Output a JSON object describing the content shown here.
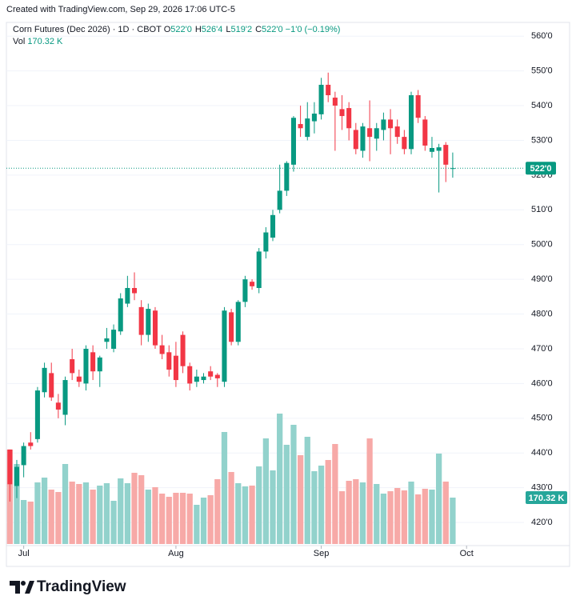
{
  "watermark": "Created with TradingView.com, Sep 29, 2026 17:06 UTC-5",
  "footer": {
    "brand": "TradingView"
  },
  "chart_data": {
    "type": "candlestick",
    "title": "Corn Futures (Dec 2026) · 1D · CBOT",
    "legend": {
      "ohlc": [
        {
          "label": "O",
          "value": "522'0"
        },
        {
          "label": "H",
          "value": "526'4"
        },
        {
          "label": "L",
          "value": "519'2"
        },
        {
          "label": "C",
          "value": "522'0"
        }
      ],
      "change": "−1'0 (−0.19%)",
      "volume_label": "Vol",
      "volume_value": "170.32 K"
    },
    "open": [
      441,
      430.5,
      436.5,
      443,
      444,
      457.5,
      463,
      454.5,
      451,
      467,
      462,
      460,
      469,
      463.5,
      472,
      470,
      475,
      483,
      487.5,
      482,
      474,
      481,
      471,
      469,
      468,
      474,
      465,
      460.5,
      461,
      463.5,
      462.5,
      460.5,
      480.5,
      472,
      483.5,
      489.3,
      487.5,
      498,
      502,
      510,
      515.5,
      523,
      534.7,
      531,
      535.5,
      537.5,
      546,
      542.3,
      539,
      539.3,
      533,
      527,
      533.5,
      530.5,
      533,
      536,
      534,
      531,
      527.5,
      543,
      536,
      526.7,
      527,
      528.7,
      522
    ],
    "high": [
      441,
      438,
      443,
      446,
      459,
      466,
      466,
      457,
      462,
      470,
      464,
      471,
      471,
      468,
      476,
      477,
      486,
      491,
      492,
      484,
      483,
      482,
      474,
      471,
      472,
      475,
      466,
      464,
      463,
      465,
      463,
      482,
      481.5,
      484,
      491,
      490,
      499,
      505,
      510,
      523,
      524,
      537,
      540,
      541,
      541,
      548,
      549.5,
      544,
      543,
      541,
      535,
      535,
      541.5,
      535,
      538,
      539,
      536,
      533,
      544,
      544.5,
      537,
      531,
      529,
      529.5,
      526.5
    ],
    "low": [
      426,
      427,
      433,
      441,
      443,
      456,
      455,
      450,
      448,
      461,
      459,
      458,
      461,
      459,
      470,
      469,
      474,
      482,
      484,
      471,
      472,
      470,
      467,
      462,
      459,
      463,
      458,
      459,
      460,
      461,
      459,
      459,
      471,
      471,
      482,
      487,
      486,
      496,
      501,
      509,
      514,
      521,
      531,
      530,
      532,
      536,
      541,
      527,
      533,
      530,
      526,
      525,
      524,
      527,
      530,
      526,
      529,
      526,
      526,
      535,
      527,
      525,
      515,
      518,
      519.25
    ],
    "close": [
      431,
      436,
      442,
      442,
      458,
      464.5,
      456,
      452.5,
      461,
      463,
      460.5,
      470,
      463.5,
      467.5,
      473,
      475.5,
      484.5,
      487.5,
      486,
      474,
      481.5,
      471,
      468.5,
      464,
      461,
      465,
      460,
      462,
      462,
      462,
      461.5,
      481,
      472,
      483.5,
      490,
      488,
      498,
      503.5,
      508.5,
      515.5,
      523.5,
      536.5,
      533.5,
      536.3,
      537.7,
      546,
      543,
      540,
      537,
      533.5,
      527.5,
      534,
      531,
      533.5,
      536,
      533.5,
      531,
      527.5,
      543,
      536.5,
      528.5,
      527.8,
      528,
      523,
      522
    ],
    "volume": [
      346.6,
      293.7,
      161.5,
      155.7,
      226.1,
      243.8,
      199.7,
      190.9,
      293.7,
      229.1,
      220.3,
      226.1,
      199.7,
      214.4,
      223.2,
      158.6,
      240.8,
      223.2,
      261.4,
      252.6,
      199.7,
      208.5,
      185.0,
      173.3,
      188.0,
      188.0,
      185.0,
      143.9,
      170.3,
      179.2,
      237.9,
      411.2,
      264.3,
      223.2,
      211.5,
      214.4,
      284.9,
      387.7,
      270.2,
      478.7,
      364.2,
      437.6,
      326.0,
      393.6,
      267.3,
      287.8,
      308.4,
      367.1,
      193.8,
      232.0,
      237.9,
      226.1,
      387.7,
      220.3,
      185.0,
      193.8,
      205.6,
      196.8,
      229.1,
      182.1,
      202.7,
      199.7,
      331.9,
      229.1,
      170.32
    ],
    "up_color": "#089981",
    "down_color": "#f23645",
    "up_volume_color": "#92d2cc",
    "down_volume_color": "#f7a9a7",
    "ylim": [
      413.8,
      563.5
    ],
    "yticks": [
      {
        "value": 420,
        "label": "420'0"
      },
      {
        "value": 430,
        "label": "430'0"
      },
      {
        "value": 440,
        "label": "440'0"
      },
      {
        "value": 450,
        "label": "450'0"
      },
      {
        "value": 460,
        "label": "460'0"
      },
      {
        "value": 470,
        "label": "470'0"
      },
      {
        "value": 480,
        "label": "480'0"
      },
      {
        "value": 490,
        "label": "490'0"
      },
      {
        "value": 500,
        "label": "500'0"
      },
      {
        "value": 510,
        "label": "510'0"
      },
      {
        "value": 520,
        "label": "520'0"
      },
      {
        "value": 530,
        "label": "530'0"
      },
      {
        "value": 540,
        "label": "540'0"
      },
      {
        "value": 550,
        "label": "550'0"
      },
      {
        "value": 560,
        "label": "560'0"
      }
    ],
    "xlim": [
      -0.5,
      74.3
    ],
    "xticks": [
      {
        "value": 2,
        "label": "Jul"
      },
      {
        "value": 24,
        "label": "Aug"
      },
      {
        "value": 45,
        "label": "Sep"
      },
      {
        "value": 66,
        "label": "Oct"
      }
    ],
    "grid": true,
    "last_price_label": "522'0",
    "last_volume_label": "170.32 K"
  }
}
